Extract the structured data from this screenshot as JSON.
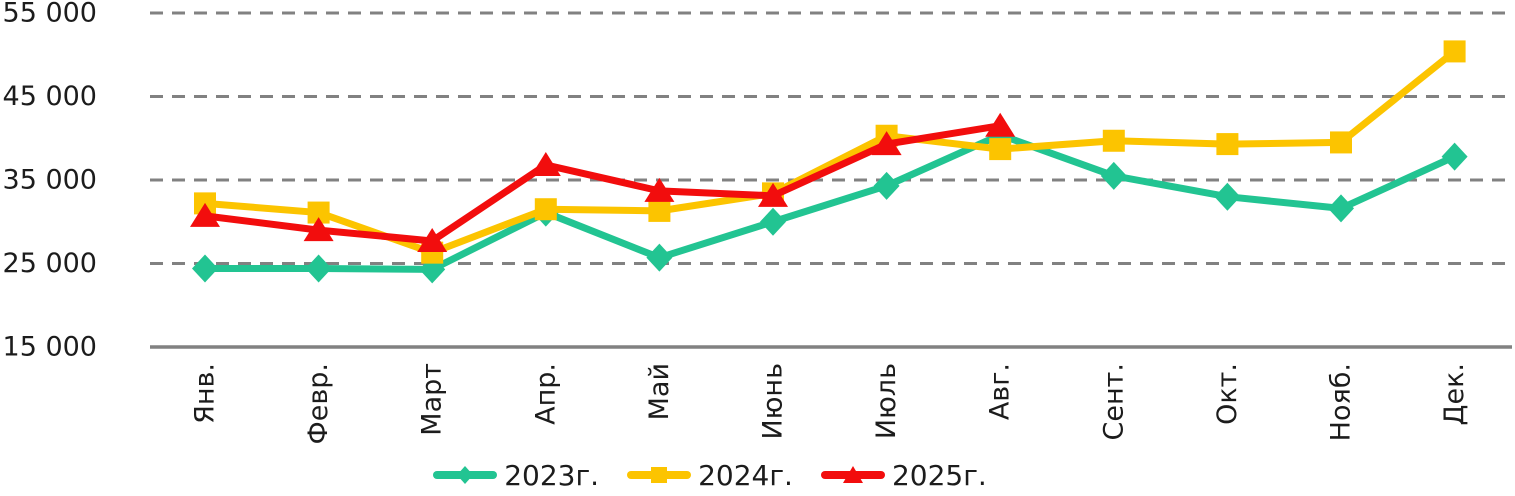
{
  "chart_data": {
    "type": "line",
    "title": "",
    "categories": [
      "Янв.",
      "Февр.",
      "Март",
      "Апр.",
      "Май",
      "Июнь",
      "Июль",
      "Авг.",
      "Сент.",
      "Окт.",
      "Нояб.",
      "Дек."
    ],
    "series": [
      {
        "name": "2023г.",
        "color": "#22C492",
        "marker": "diamond",
        "values": [
          24400,
          24400,
          24300,
          31100,
          25700,
          30000,
          34300,
          40400,
          35500,
          33000,
          31600,
          37800
        ]
      },
      {
        "name": "2024г.",
        "color": "#FCC400",
        "marker": "square",
        "values": [
          32200,
          31100,
          26300,
          31500,
          31300,
          33400,
          40300,
          38700,
          39700,
          39300,
          39500,
          50400
        ]
      },
      {
        "name": "2025г.",
        "color": "#F20D0D",
        "marker": "triangle",
        "values": [
          30700,
          29000,
          27700,
          36800,
          33700,
          33100,
          39300,
          41500,
          null,
          null,
          null,
          null
        ]
      }
    ],
    "y_axis": {
      "min": 15000,
      "max": 55000,
      "ticks": [
        {
          "value": 55000,
          "label": "55 000"
        },
        {
          "value": 45000,
          "label": "45 000"
        },
        {
          "value": 35000,
          "label": "35 000"
        },
        {
          "value": 25000,
          "label": "25 000"
        },
        {
          "value": 15000,
          "label": "15 000"
        }
      ]
    },
    "grid": {
      "visible": true,
      "style": "dashed",
      "color": "#818181"
    },
    "axis_color": "#818181",
    "text_color": "#1C1C1C",
    "background": "#FFFFFF",
    "legend": {
      "position": "bottom"
    }
  }
}
